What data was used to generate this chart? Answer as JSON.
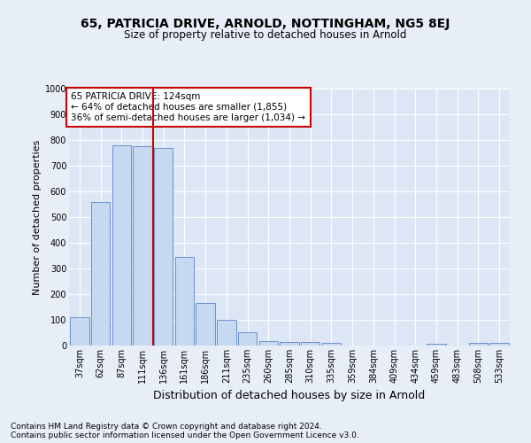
{
  "title_line1": "65, PATRICIA DRIVE, ARNOLD, NOTTINGHAM, NG5 8EJ",
  "title_line2": "Size of property relative to detached houses in Arnold",
  "xlabel": "Distribution of detached houses by size in Arnold",
  "ylabel": "Number of detached properties",
  "bar_labels": [
    "37sqm",
    "62sqm",
    "87sqm",
    "111sqm",
    "136sqm",
    "161sqm",
    "186sqm",
    "211sqm",
    "235sqm",
    "260sqm",
    "285sqm",
    "310sqm",
    "335sqm",
    "359sqm",
    "384sqm",
    "409sqm",
    "434sqm",
    "459sqm",
    "483sqm",
    "508sqm",
    "533sqm"
  ],
  "bar_values": [
    112,
    560,
    780,
    775,
    770,
    345,
    165,
    100,
    52,
    18,
    14,
    14,
    10,
    0,
    0,
    0,
    0,
    8,
    0,
    10,
    10
  ],
  "bar_color": "#c5d9f0",
  "bar_edge_color": "#4472c4",
  "background_color": "#dce6f5",
  "fig_background_color": "#e8eef8",
  "grid_color": "#ffffff",
  "annotation_box_text": "65 PATRICIA DRIVE: 124sqm\n← 64% of detached houses are smaller (1,855)\n36% of semi-detached houses are larger (1,034) →",
  "annotation_box_color": "#ffffff",
  "annotation_box_edge_color": "#cc0000",
  "vline_color": "#cc0000",
  "ylim": [
    0,
    1000
  ],
  "yticks": [
    0,
    100,
    200,
    300,
    400,
    500,
    600,
    700,
    800,
    900,
    1000
  ],
  "footer_line1": "Contains HM Land Registry data © Crown copyright and database right 2024.",
  "footer_line2": "Contains public sector information licensed under the Open Government Licence v3.0.",
  "title_fontsize": 10,
  "subtitle_fontsize": 8.5,
  "axis_label_fontsize": 8,
  "xlabel_fontsize": 9,
  "tick_fontsize": 7,
  "annotation_fontsize": 7.5,
  "footer_fontsize": 6.5
}
